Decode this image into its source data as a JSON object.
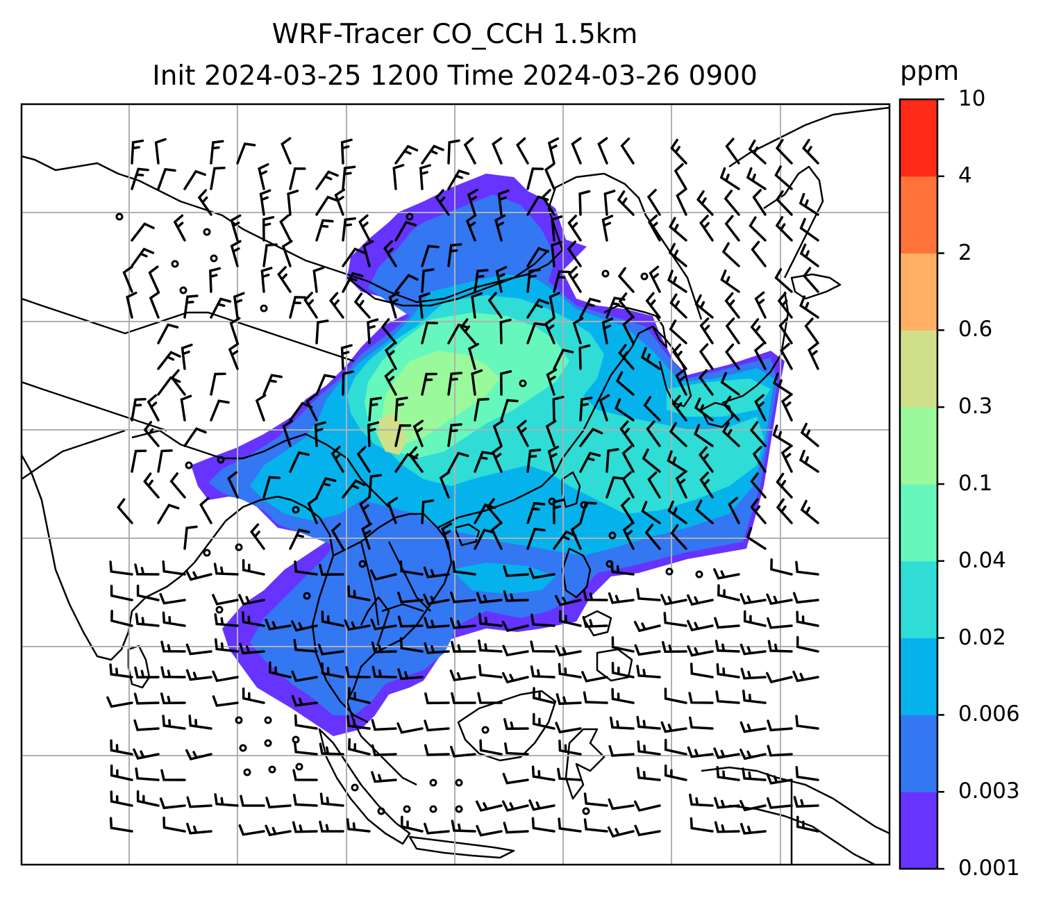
{
  "title": {
    "line1": "WRF-Tracer CO_CCH 1.5km",
    "line2": "Init 2024-03-25 1200 Time 2024-03-26 0900"
  },
  "colorbar": {
    "unit": "ppm",
    "ticks": [
      "0.001",
      "0.003",
      "0.006",
      "0.02",
      "0.04",
      "0.1",
      "0.3",
      "0.6",
      "2",
      "4",
      "10"
    ],
    "colors": [
      "#6633ff",
      "#3377f2",
      "#06b2ec",
      "#2fdcd6",
      "#66f7bd",
      "#99f99b",
      "#d0e08a",
      "#feb065",
      "#ff7339",
      "#ff2a17"
    ]
  },
  "map": {
    "gridlines": "on",
    "features": [
      "coastlines",
      "country borders",
      "wind barbs",
      "CO tracer concentration shading"
    ]
  }
}
